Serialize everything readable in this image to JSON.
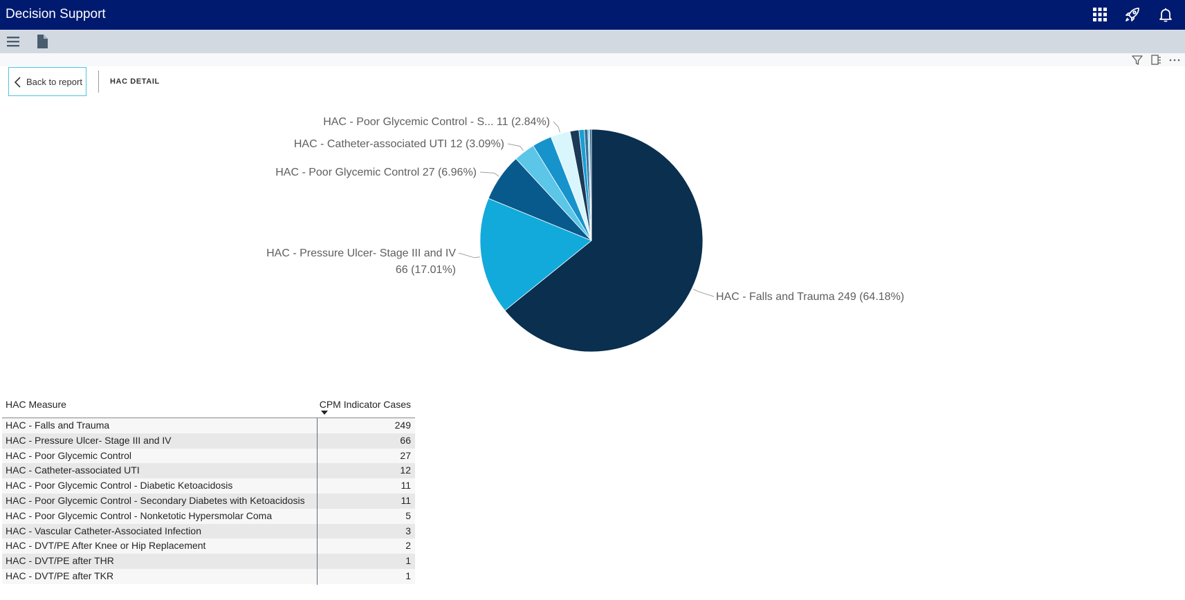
{
  "app": {
    "title": "Decision Support"
  },
  "header_icons": [
    "apps-grid-icon",
    "rocket-icon",
    "bell-icon"
  ],
  "toolbar_icons": [
    "hamburger-menu-icon",
    "document-icon"
  ],
  "visual_header_icons": [
    "filter-icon",
    "focus-mode-icon",
    "more-options-icon"
  ],
  "nav": {
    "back_label": "Back to report",
    "page_title": "HAC DETAIL"
  },
  "colors": {
    "topbar": "#001a70",
    "toolbar": "#d2d9e1",
    "accent": "#4fc3e0",
    "slices": [
      "#0a2f4f",
      "#12aadb",
      "#085a8c",
      "#5bc6e8",
      "#1793cc",
      "#d8f6fc",
      "#1b3a57",
      "#1a9ed6",
      "#3a6f93",
      "#82d2ee",
      "#2c5c83"
    ]
  },
  "chart_data": {
    "type": "pie",
    "categories": [
      "HAC - Falls and Trauma",
      "HAC - Pressure Ulcer- Stage III and IV",
      "HAC - Poor Glycemic Control",
      "HAC - Catheter-associated UTI",
      "HAC - Poor Glycemic Control - Diabetic Ketoacidosis",
      "HAC - Poor Glycemic Control - Secondary Diabetes with Ketoacidosis",
      "HAC - Poor Glycemic Control - Nonketotic Hypersmolar Coma",
      "HAC - Vascular Catheter-Associated Infection",
      "HAC - DVT/PE After Knee or Hip Replacement",
      "HAC - DVT/PE after THR",
      "HAC - DVT/PE after TKR"
    ],
    "values": [
      249,
      66,
      27,
      12,
      11,
      11,
      5,
      3,
      2,
      1,
      1
    ],
    "data_labels": [
      {
        "index": 0,
        "lines": [
          "HAC - Falls and Trauma 249 (64.18%)"
        ]
      },
      {
        "index": 1,
        "lines": [
          "HAC - Pressure Ulcer- Stage III and IV",
          "66 (17.01%)"
        ]
      },
      {
        "index": 2,
        "lines": [
          "HAC - Poor Glycemic Control 27 (6.96%)"
        ]
      },
      {
        "index": 3,
        "lines": [
          "HAC - Catheter-associated UTI 12 (3.09%)"
        ]
      },
      {
        "index": 5,
        "lines": [
          "HAC - Poor Glycemic Control - S... 11 (2.84%)"
        ]
      }
    ]
  },
  "table": {
    "headers": {
      "measure": "HAC Measure",
      "cases": "CPM Indicator Cases"
    },
    "sort": "descending",
    "rows": [
      {
        "measure": "HAC - Falls and Trauma",
        "cases": "249"
      },
      {
        "measure": "HAC - Pressure Ulcer- Stage III and IV",
        "cases": "66"
      },
      {
        "measure": "HAC - Poor Glycemic Control",
        "cases": "27"
      },
      {
        "measure": "HAC - Catheter-associated UTI",
        "cases": "12"
      },
      {
        "measure": "HAC - Poor Glycemic Control - Diabetic Ketoacidosis",
        "cases": "11"
      },
      {
        "measure": "HAC - Poor Glycemic Control - Secondary Diabetes with Ketoacidosis",
        "cases": "11"
      },
      {
        "measure": "HAC - Poor Glycemic Control - Nonketotic Hypersmolar Coma",
        "cases": "5"
      },
      {
        "measure": "HAC - Vascular Catheter-Associated Infection",
        "cases": "3"
      },
      {
        "measure": "HAC - DVT/PE After Knee or Hip Replacement",
        "cases": "2"
      },
      {
        "measure": "HAC - DVT/PE after THR",
        "cases": "1"
      },
      {
        "measure": "HAC - DVT/PE after TKR",
        "cases": "1"
      }
    ]
  }
}
